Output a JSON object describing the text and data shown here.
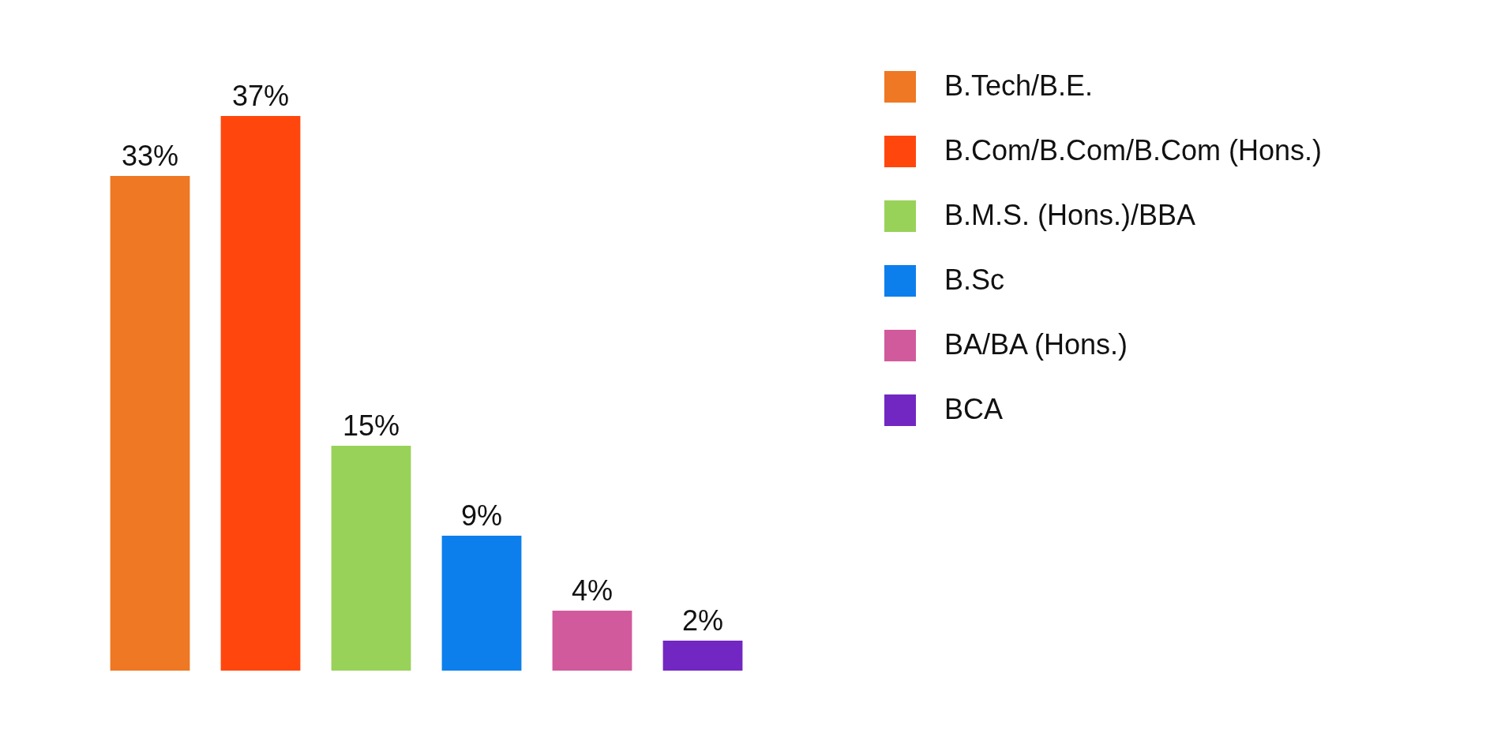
{
  "chart_data": {
    "type": "bar",
    "categories": [
      null,
      null,
      null,
      null,
      null,
      null
    ],
    "series": [
      {
        "name": "B.Tech/B.E.",
        "color": "#ed7117",
        "values": [
          33,
          null,
          null,
          null,
          null,
          null
        ],
        "value_labels": [
          "33%",
          null,
          null,
          null,
          null,
          null
        ]
      },
      {
        "name": "B.Com/B.Com/B.Com (Hons.)",
        "color": "#ff3d00",
        "values": [
          null,
          37,
          null,
          null,
          null,
          null
        ],
        "value_labels": [
          null,
          "37%",
          null,
          null,
          null,
          null
        ]
      },
      {
        "name": "B.M.S. (Hons.)/BBA",
        "color": "#92d050",
        "values": [
          null,
          null,
          15,
          null,
          null,
          null
        ],
        "value_labels": [
          null,
          null,
          "15%",
          null,
          null,
          null
        ]
      },
      {
        "name": "B.Sc",
        "color": "#0078eb",
        "values": [
          null,
          null,
          null,
          9,
          null,
          null
        ],
        "value_labels": [
          null,
          null,
          null,
          "9%",
          null,
          null
        ]
      },
      {
        "name": "BA/BA (Hons.)",
        "color": "#cf5197",
        "values": [
          null,
          null,
          null,
          null,
          4,
          null
        ],
        "value_labels": [
          null,
          null,
          null,
          null,
          "4%",
          null
        ]
      },
      {
        "name": "BCA",
        "color": "#6a1bbf",
        "values": [
          null,
          null,
          null,
          null,
          null,
          2
        ],
        "value_labels": [
          null,
          null,
          null,
          null,
          null,
          "2%"
        ]
      }
    ],
    "stacked": true,
    "legend": "right",
    "tick_labels": false
  }
}
